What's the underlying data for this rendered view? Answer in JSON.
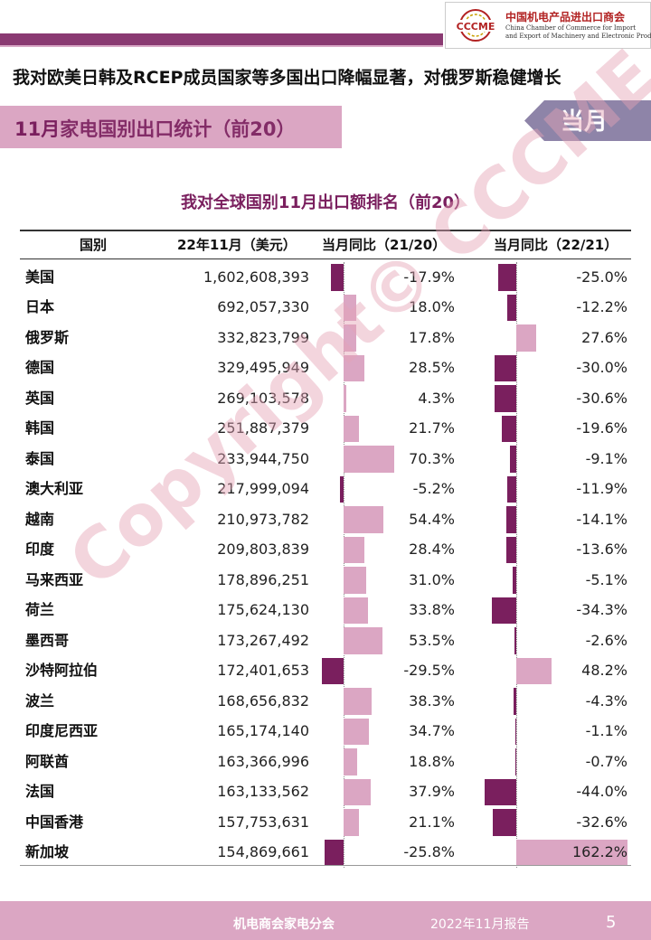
{
  "header": {
    "logo_text": "CCCME",
    "org_cn": "中国机电产品进出口商会",
    "org_en": "China Chamber of Commerce for Import\nand Export of Machinery and Electronic Products"
  },
  "headline": "我对欧美日韩及RCEP成员国家等多国出口降幅显著，对俄罗斯稳健增长",
  "section": {
    "title_highlight": "11月",
    "title_rest": "家电国别出口统计（前20）",
    "tag": "当月"
  },
  "watermark": "Copyright© CCCME",
  "footer": {
    "org": "机电商会家电分会",
    "date": "2022年11月报告",
    "page": "5"
  },
  "colors": {
    "negative_bar": "#7a1f5e",
    "positive_bar": "#dba6c3",
    "accent": "#8a3a72"
  },
  "chart_data": {
    "type": "table",
    "title": "我对全球国别11月出口额排名（前20）",
    "columns": [
      "国别",
      "22年11月（美元）",
      "当月同比（21/20）",
      "当月同比（22/21）"
    ],
    "rows": [
      {
        "country": "美国",
        "value": "1,602,608,393",
        "yoy_21_20": -17.9,
        "yoy_22_21": -25.0,
        "yoy_21_20_label": "-17.9%",
        "yoy_22_21_label": "-25.0%"
      },
      {
        "country": "日本",
        "value": "692,057,330",
        "yoy_21_20": 18.0,
        "yoy_22_21": -12.2,
        "yoy_21_20_label": "18.0%",
        "yoy_22_21_label": "-12.2%"
      },
      {
        "country": "俄罗斯",
        "value": "332,823,799",
        "yoy_21_20": 17.8,
        "yoy_22_21": 27.6,
        "yoy_21_20_label": "17.8%",
        "yoy_22_21_label": "27.6%"
      },
      {
        "country": "德国",
        "value": "329,495,949",
        "yoy_21_20": 28.5,
        "yoy_22_21": -30.0,
        "yoy_21_20_label": "28.5%",
        "yoy_22_21_label": "-30.0%"
      },
      {
        "country": "英国",
        "value": "269,103,578",
        "yoy_21_20": 4.3,
        "yoy_22_21": -30.6,
        "yoy_21_20_label": "4.3%",
        "yoy_22_21_label": "-30.6%"
      },
      {
        "country": "韩国",
        "value": "251,887,379",
        "yoy_21_20": 21.7,
        "yoy_22_21": -19.6,
        "yoy_21_20_label": "21.7%",
        "yoy_22_21_label": "-19.6%"
      },
      {
        "country": "泰国",
        "value": "233,944,750",
        "yoy_21_20": 70.3,
        "yoy_22_21": -9.1,
        "yoy_21_20_label": "70.3%",
        "yoy_22_21_label": "-9.1%"
      },
      {
        "country": "澳大利亚",
        "value": "217,999,094",
        "yoy_21_20": -5.2,
        "yoy_22_21": -11.9,
        "yoy_21_20_label": "-5.2%",
        "yoy_22_21_label": "-11.9%"
      },
      {
        "country": "越南",
        "value": "210,973,782",
        "yoy_21_20": 54.4,
        "yoy_22_21": -14.1,
        "yoy_21_20_label": "54.4%",
        "yoy_22_21_label": "-14.1%"
      },
      {
        "country": "印度",
        "value": "209,803,839",
        "yoy_21_20": 28.4,
        "yoy_22_21": -13.6,
        "yoy_21_20_label": "28.4%",
        "yoy_22_21_label": "-13.6%"
      },
      {
        "country": "马来西亚",
        "value": "178,896,251",
        "yoy_21_20": 31.0,
        "yoy_22_21": -5.1,
        "yoy_21_20_label": "31.0%",
        "yoy_22_21_label": "-5.1%"
      },
      {
        "country": "荷兰",
        "value": "175,624,130",
        "yoy_21_20": 33.8,
        "yoy_22_21": -34.3,
        "yoy_21_20_label": "33.8%",
        "yoy_22_21_label": "-34.3%"
      },
      {
        "country": "墨西哥",
        "value": "173,267,492",
        "yoy_21_20": 53.5,
        "yoy_22_21": -2.6,
        "yoy_21_20_label": "53.5%",
        "yoy_22_21_label": "-2.6%"
      },
      {
        "country": "沙特阿拉伯",
        "value": "172,401,653",
        "yoy_21_20": -29.5,
        "yoy_22_21": 48.2,
        "yoy_21_20_label": "-29.5%",
        "yoy_22_21_label": "48.2%"
      },
      {
        "country": "波兰",
        "value": "168,656,832",
        "yoy_21_20": 38.3,
        "yoy_22_21": -4.3,
        "yoy_21_20_label": "38.3%",
        "yoy_22_21_label": "-4.3%"
      },
      {
        "country": "印度尼西亚",
        "value": "165,174,140",
        "yoy_21_20": 34.7,
        "yoy_22_21": -1.1,
        "yoy_21_20_label": "34.7%",
        "yoy_22_21_label": "-1.1%"
      },
      {
        "country": "阿联酋",
        "value": "163,366,996",
        "yoy_21_20": 18.8,
        "yoy_22_21": -0.7,
        "yoy_21_20_label": "18.8%",
        "yoy_22_21_label": "-0.7%"
      },
      {
        "country": "法国",
        "value": "163,133,562",
        "yoy_21_20": 37.9,
        "yoy_22_21": -44.0,
        "yoy_21_20_label": "37.9%",
        "yoy_22_21_label": "-44.0%"
      },
      {
        "country": "中国香港",
        "value": "157,753,631",
        "yoy_21_20": 21.1,
        "yoy_22_21": -32.6,
        "yoy_21_20_label": "21.1%",
        "yoy_22_21_label": "-32.6%"
      },
      {
        "country": "新加坡",
        "value": "154,869,661",
        "yoy_21_20": -25.8,
        "yoy_22_21": 162.2,
        "yoy_21_20_label": "-25.8%",
        "yoy_22_21_label": "162.2%"
      }
    ]
  }
}
